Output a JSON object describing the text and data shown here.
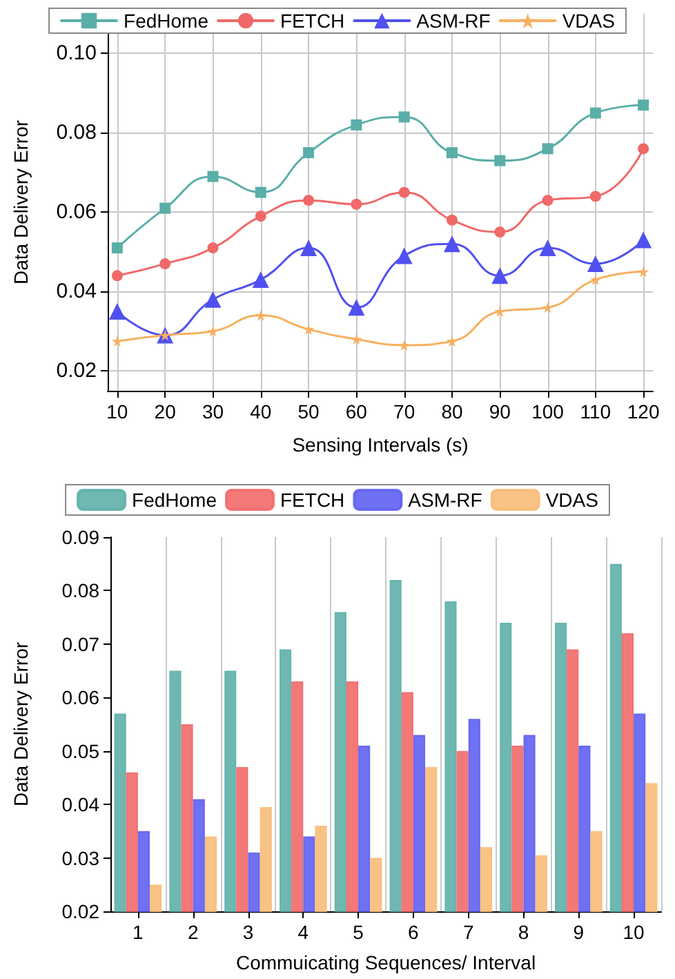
{
  "chart_data": [
    {
      "type": "line",
      "xlabel": "Sensing Intervals (s)",
      "ylabel": "Data Delivery Error",
      "x": [
        10,
        20,
        30,
        40,
        50,
        60,
        70,
        80,
        90,
        100,
        110,
        120
      ],
      "xlim": [
        8,
        122
      ],
      "xticks": [
        10,
        20,
        30,
        40,
        50,
        60,
        70,
        80,
        90,
        100,
        110,
        120
      ],
      "ylim": [
        0.015,
        0.11
      ],
      "yticks": [
        0.02,
        0.04,
        0.06,
        0.08,
        {
          "value": 0.1,
          "label": "0.10"
        }
      ],
      "grid": true,
      "legend": "top",
      "line_style": "solid",
      "series": [
        {
          "name": "FedHome",
          "color": "#5aaea8",
          "marker": "square",
          "values": [
            0.051,
            0.061,
            0.069,
            0.065,
            0.075,
            0.082,
            0.084,
            0.075,
            0.073,
            0.076,
            0.085,
            0.087
          ]
        },
        {
          "name": "FETCH",
          "color": "#f06868",
          "marker": "circle",
          "values": [
            0.044,
            0.047,
            0.051,
            0.059,
            0.063,
            0.062,
            0.065,
            0.058,
            0.055,
            0.063,
            0.064,
            0.076
          ]
        },
        {
          "name": "ASM-RF",
          "color": "#5050f0",
          "marker": "triangle",
          "values": [
            0.035,
            0.029,
            0.038,
            0.043,
            0.051,
            0.036,
            0.049,
            0.052,
            0.044,
            0.051,
            0.047,
            0.053
          ]
        },
        {
          "name": "VDAS",
          "color": "#f7b060",
          "marker": "star",
          "values": [
            0.0275,
            0.029,
            0.03,
            0.034,
            0.0305,
            0.028,
            0.0265,
            0.0275,
            0.035,
            0.036,
            0.043,
            0.045
          ]
        }
      ]
    },
    {
      "type": "bar",
      "xlabel": "Commuicating Sequences/ Interval",
      "ylabel": "Data Delivery Error",
      "categories": [
        "1",
        "2",
        "3",
        "4",
        "5",
        "6",
        "7",
        "8",
        "9",
        "10"
      ],
      "ylim": [
        0.02,
        0.09
      ],
      "yticks": [
        0.02,
        0.03,
        0.04,
        0.05,
        0.06,
        0.07,
        0.08,
        0.09
      ],
      "grid": "x",
      "legend": "top",
      "series": [
        {
          "name": "FedHome",
          "color": "#5fb0aa",
          "values": [
            0.057,
            0.065,
            0.065,
            0.069,
            0.076,
            0.082,
            0.078,
            0.074,
            0.074,
            0.085
          ]
        },
        {
          "name": "FETCH",
          "color": "#f26a6a",
          "values": [
            0.046,
            0.055,
            0.047,
            0.063,
            0.063,
            0.061,
            0.05,
            0.051,
            0.069,
            0.072
          ]
        },
        {
          "name": "ASM-RF",
          "color": "#6060f2",
          "values": [
            0.035,
            0.041,
            0.031,
            0.034,
            0.051,
            0.053,
            0.056,
            0.053,
            0.051,
            0.057
          ]
        },
        {
          "name": "VDAS",
          "color": "#f8bc78",
          "values": [
            0.025,
            0.034,
            0.0395,
            0.036,
            0.03,
            0.047,
            0.032,
            0.0305,
            0.035,
            0.044
          ]
        }
      ]
    }
  ]
}
